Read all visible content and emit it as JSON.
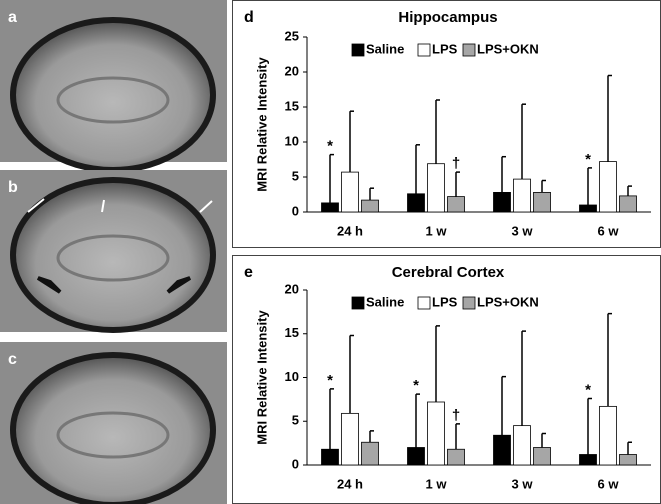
{
  "panels": [
    {
      "label": "a"
    },
    {
      "label": "b"
    },
    {
      "label": "c"
    }
  ],
  "chart_data": [
    {
      "type": "bar",
      "panel_label": "d",
      "title": "Hippocampus",
      "y_label": "MRI Relative Intensity",
      "categories": [
        "24 h",
        "1 w",
        "3 w",
        "6 w"
      ],
      "series": [
        {
          "name": "Saline",
          "color": "#000000",
          "values": [
            1.3,
            2.6,
            2.8,
            1.0
          ],
          "errors": [
            6.9,
            7.0,
            5.1,
            5.3
          ]
        },
        {
          "name": "LPS",
          "color": "#ffffff",
          "values": [
            5.7,
            6.9,
            4.7,
            7.2
          ],
          "errors": [
            8.7,
            9.1,
            10.7,
            12.3
          ]
        },
        {
          "name": "LPS+OKN",
          "color": "#a6a6a6",
          "values": [
            1.7,
            2.2,
            2.8,
            2.3
          ],
          "errors": [
            1.7,
            3.5,
            1.7,
            1.4
          ]
        }
      ],
      "annotations": [
        {
          "text": "*",
          "category": 0,
          "series": 0
        },
        {
          "text": "†",
          "category": 1,
          "series": 2
        },
        {
          "text": "*",
          "category": 3,
          "series": 0
        }
      ],
      "ylim": [
        0,
        25
      ],
      "yticks": [
        0,
        5,
        10,
        15,
        20,
        25
      ],
      "legend": "top"
    },
    {
      "type": "bar",
      "panel_label": "e",
      "title": "Cerebral Cortex",
      "y_label": "MRI Relative Intensity",
      "categories": [
        "24 h",
        "1 w",
        "3 w",
        "6 w"
      ],
      "series": [
        {
          "name": "Saline",
          "color": "#000000",
          "values": [
            1.8,
            2.0,
            3.4,
            1.2
          ],
          "errors": [
            6.9,
            6.1,
            6.7,
            6.4
          ]
        },
        {
          "name": "LPS",
          "color": "#ffffff",
          "values": [
            5.9,
            7.2,
            4.5,
            6.7
          ],
          "errors": [
            8.9,
            8.7,
            10.8,
            10.6
          ]
        },
        {
          "name": "LPS+OKN",
          "color": "#a6a6a6",
          "values": [
            2.6,
            1.8,
            2.0,
            1.2
          ],
          "errors": [
            1.3,
            2.9,
            1.6,
            1.4
          ]
        }
      ],
      "annotations": [
        {
          "text": "*",
          "category": 0,
          "series": 0
        },
        {
          "text": "*",
          "category": 1,
          "series": 0
        },
        {
          "text": "†",
          "category": 1,
          "series": 2
        },
        {
          "text": "*",
          "category": 3,
          "series": 0
        }
      ],
      "ylim": [
        0,
        20
      ],
      "yticks": [
        0,
        5,
        10,
        15,
        20
      ],
      "legend": "top"
    }
  ]
}
